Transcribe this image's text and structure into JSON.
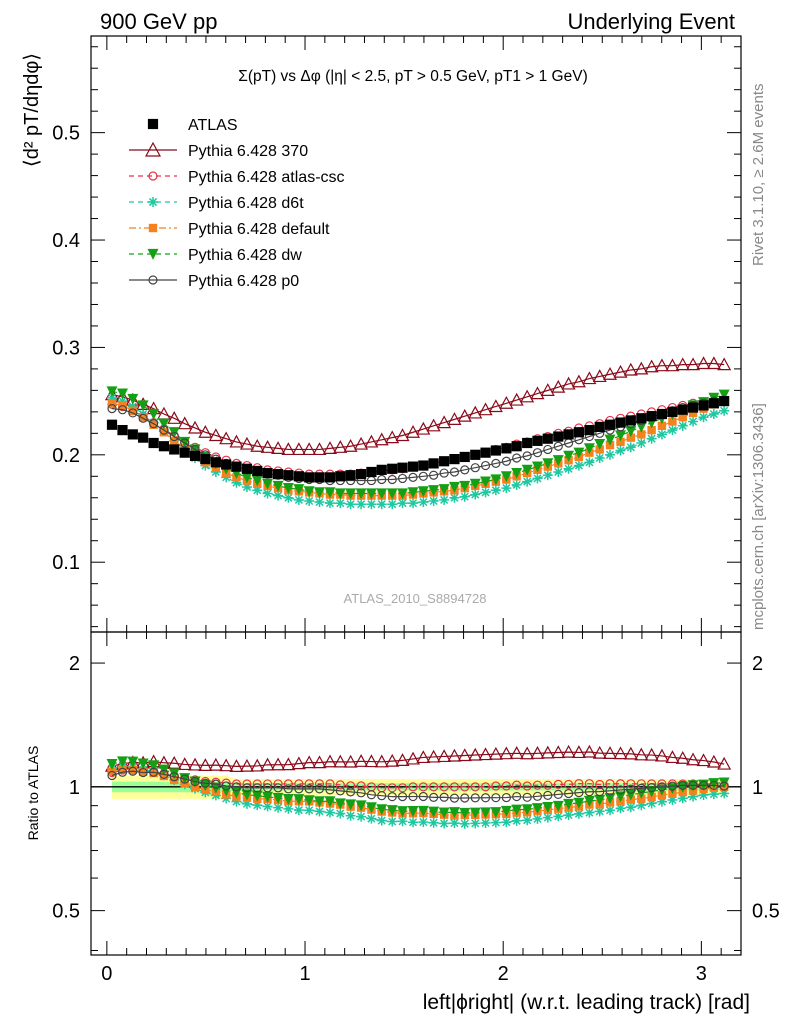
{
  "header": {
    "left": "900 GeV pp",
    "right": "Underlying Event"
  },
  "side_labels": {
    "rivet": "Rivet 3.1.10, ≥ 2.6M events",
    "mcplots": "mcplots.cern.ch [arXiv:1306.3436]"
  },
  "watermark": "ATLAS_2010_S8894728",
  "chart_data": [
    {
      "type": "scatter",
      "panel": "main",
      "title": "Σ(pT) vs Δφ (|η| < 2.5, pT > 0.5 GeV, pT1 > 1 GeV)",
      "ylabel": "⟨d² pT/dηdφ⟩",
      "xlim": [
        -0.08,
        3.2
      ],
      "ylim": [
        0.035,
        0.59
      ],
      "y_ticks": [
        0.1,
        0.2,
        0.3,
        0.4,
        0.5
      ],
      "y_tick_labels": [
        "0.1",
        "0.2",
        "0.3",
        "0.4",
        "0.5"
      ],
      "legend_position": "top-left",
      "x": [
        0.026,
        0.079,
        0.131,
        0.183,
        0.236,
        0.288,
        0.34,
        0.393,
        0.445,
        0.497,
        0.55,
        0.602,
        0.654,
        0.707,
        0.759,
        0.811,
        0.864,
        0.916,
        0.969,
        1.021,
        1.073,
        1.126,
        1.178,
        1.23,
        1.283,
        1.335,
        1.387,
        1.44,
        1.492,
        1.545,
        1.597,
        1.649,
        1.702,
        1.754,
        1.806,
        1.859,
        1.911,
        1.963,
        2.016,
        2.068,
        2.121,
        2.173,
        2.225,
        2.278,
        2.33,
        2.382,
        2.435,
        2.487,
        2.539,
        2.592,
        2.644,
        2.697,
        2.749,
        2.801,
        2.854,
        2.906,
        2.958,
        3.011,
        3.063,
        3.115
      ],
      "series": [
        {
          "name": "ATLAS",
          "color": "#000000",
          "marker": "square",
          "line": "none",
          "values": [
            0.228,
            0.223,
            0.219,
            0.216,
            0.211,
            0.208,
            0.205,
            0.202,
            0.199,
            0.196,
            0.193,
            0.191,
            0.189,
            0.187,
            0.185,
            0.183,
            0.182,
            0.181,
            0.18,
            0.179,
            0.179,
            0.179,
            0.18,
            0.181,
            0.182,
            0.184,
            0.186,
            0.187,
            0.188,
            0.189,
            0.19,
            0.192,
            0.194,
            0.196,
            0.198,
            0.2,
            0.202,
            0.204,
            0.206,
            0.208,
            0.211,
            0.213,
            0.215,
            0.217,
            0.219,
            0.221,
            0.223,
            0.226,
            0.228,
            0.23,
            0.232,
            0.234,
            0.236,
            0.238,
            0.24,
            0.242,
            0.244,
            0.246,
            0.248,
            0.25
          ]
        },
        {
          "name": "Pythia 6.428 370",
          "color": "#8b0a1a",
          "marker": "triangle-open",
          "line": "solid",
          "values": [
            0.256,
            0.254,
            0.251,
            0.247,
            0.243,
            0.238,
            0.234,
            0.229,
            0.225,
            0.221,
            0.218,
            0.215,
            0.212,
            0.21,
            0.208,
            0.207,
            0.206,
            0.205,
            0.205,
            0.205,
            0.205,
            0.206,
            0.207,
            0.208,
            0.21,
            0.212,
            0.214,
            0.216,
            0.218,
            0.221,
            0.224,
            0.227,
            0.23,
            0.233,
            0.236,
            0.239,
            0.242,
            0.245,
            0.248,
            0.251,
            0.254,
            0.257,
            0.26,
            0.263,
            0.266,
            0.268,
            0.271,
            0.273,
            0.275,
            0.277,
            0.279,
            0.28,
            0.282,
            0.283,
            0.283,
            0.284,
            0.284,
            0.285,
            0.285,
            0.284
          ]
        },
        {
          "name": "Pythia 6.428 atlas-csc",
          "color": "#e8324a",
          "marker": "circle-open",
          "line": "dashed",
          "values": [
            0.247,
            0.245,
            0.241,
            0.236,
            0.23,
            0.224,
            0.218,
            0.212,
            0.207,
            0.202,
            0.198,
            0.195,
            0.192,
            0.19,
            0.188,
            0.186,
            0.185,
            0.184,
            0.183,
            0.182,
            0.182,
            0.182,
            0.182,
            0.182,
            0.183,
            0.184,
            0.185,
            0.186,
            0.187,
            0.189,
            0.19,
            0.192,
            0.194,
            0.196,
            0.198,
            0.2,
            0.202,
            0.205,
            0.207,
            0.21,
            0.212,
            0.215,
            0.217,
            0.22,
            0.222,
            0.225,
            0.227,
            0.229,
            0.232,
            0.234,
            0.236,
            0.238,
            0.24,
            0.242,
            0.244,
            0.246,
            0.248,
            0.249,
            0.25,
            0.251
          ]
        },
        {
          "name": "Pythia 6.428 d6t",
          "color": "#1ec8a0",
          "marker": "star",
          "line": "dashed",
          "values": [
            0.253,
            0.25,
            0.245,
            0.238,
            0.23,
            0.222,
            0.213,
            0.205,
            0.197,
            0.19,
            0.184,
            0.179,
            0.174,
            0.17,
            0.167,
            0.164,
            0.162,
            0.16,
            0.158,
            0.157,
            0.156,
            0.155,
            0.155,
            0.154,
            0.154,
            0.154,
            0.154,
            0.154,
            0.155,
            0.155,
            0.156,
            0.157,
            0.158,
            0.16,
            0.161,
            0.163,
            0.165,
            0.167,
            0.169,
            0.172,
            0.175,
            0.178,
            0.181,
            0.184,
            0.187,
            0.19,
            0.193,
            0.197,
            0.2,
            0.204,
            0.207,
            0.211,
            0.215,
            0.219,
            0.223,
            0.227,
            0.231,
            0.235,
            0.238,
            0.241
          ]
        },
        {
          "name": "Pythia 6.428 default",
          "color": "#f5821e",
          "marker": "square",
          "line": "dashdot",
          "values": [
            0.248,
            0.246,
            0.241,
            0.235,
            0.228,
            0.221,
            0.213,
            0.206,
            0.199,
            0.193,
            0.188,
            0.183,
            0.179,
            0.176,
            0.173,
            0.171,
            0.169,
            0.167,
            0.166,
            0.165,
            0.164,
            0.163,
            0.163,
            0.162,
            0.162,
            0.162,
            0.162,
            0.162,
            0.162,
            0.163,
            0.164,
            0.165,
            0.166,
            0.167,
            0.169,
            0.171,
            0.173,
            0.175,
            0.177,
            0.18,
            0.183,
            0.186,
            0.189,
            0.192,
            0.195,
            0.198,
            0.202,
            0.205,
            0.209,
            0.212,
            0.216,
            0.219,
            0.223,
            0.227,
            0.231,
            0.235,
            0.239,
            0.243,
            0.247,
            0.25
          ]
        },
        {
          "name": "Pythia 6.428 dw",
          "color": "#14a014",
          "marker": "triangle-down",
          "line": "dashed",
          "values": [
            0.259,
            0.257,
            0.252,
            0.246,
            0.238,
            0.229,
            0.221,
            0.212,
            0.205,
            0.198,
            0.192,
            0.187,
            0.183,
            0.179,
            0.176,
            0.173,
            0.171,
            0.169,
            0.168,
            0.166,
            0.165,
            0.165,
            0.164,
            0.164,
            0.164,
            0.164,
            0.164,
            0.164,
            0.164,
            0.165,
            0.166,
            0.167,
            0.168,
            0.17,
            0.171,
            0.173,
            0.175,
            0.177,
            0.18,
            0.183,
            0.186,
            0.189,
            0.192,
            0.195,
            0.199,
            0.202,
            0.206,
            0.21,
            0.214,
            0.218,
            0.222,
            0.226,
            0.23,
            0.234,
            0.238,
            0.242,
            0.246,
            0.249,
            0.253,
            0.256
          ]
        },
        {
          "name": "Pythia 6.428 p0",
          "color": "#444444",
          "marker": "circle-open",
          "line": "solid",
          "values": [
            0.243,
            0.242,
            0.239,
            0.234,
            0.229,
            0.223,
            0.217,
            0.211,
            0.205,
            0.2,
            0.196,
            0.192,
            0.189,
            0.186,
            0.184,
            0.182,
            0.181,
            0.179,
            0.178,
            0.177,
            0.177,
            0.176,
            0.176,
            0.176,
            0.176,
            0.176,
            0.177,
            0.177,
            0.178,
            0.179,
            0.18,
            0.181,
            0.183,
            0.184,
            0.186,
            0.188,
            0.19,
            0.192,
            0.194,
            0.197,
            0.199,
            0.202,
            0.205,
            0.208,
            0.211,
            0.214,
            0.217,
            0.22,
            0.223,
            0.226,
            0.229,
            0.232,
            0.235,
            0.238,
            0.241,
            0.244,
            0.246,
            0.248,
            0.25,
            0.251
          ]
        }
      ]
    },
    {
      "type": "scatter",
      "panel": "ratio",
      "xlabel": "left|ϕright| (w.r.t. leading track) [rad]",
      "ylabel": "Ratio to ATLAS",
      "xlim": [
        -0.08,
        3.2
      ],
      "ylim": [
        0.39,
        2.38
      ],
      "log_y": true,
      "x_ticks": [
        0,
        1,
        2,
        3
      ],
      "x_tick_labels": [
        "0",
        "1",
        "2",
        "3"
      ],
      "y_tick_labels": [
        "0.5",
        "1",
        "2"
      ],
      "reference_line": 1,
      "band_colors": [
        "#ffff99",
        "#99ff99"
      ]
    }
  ]
}
